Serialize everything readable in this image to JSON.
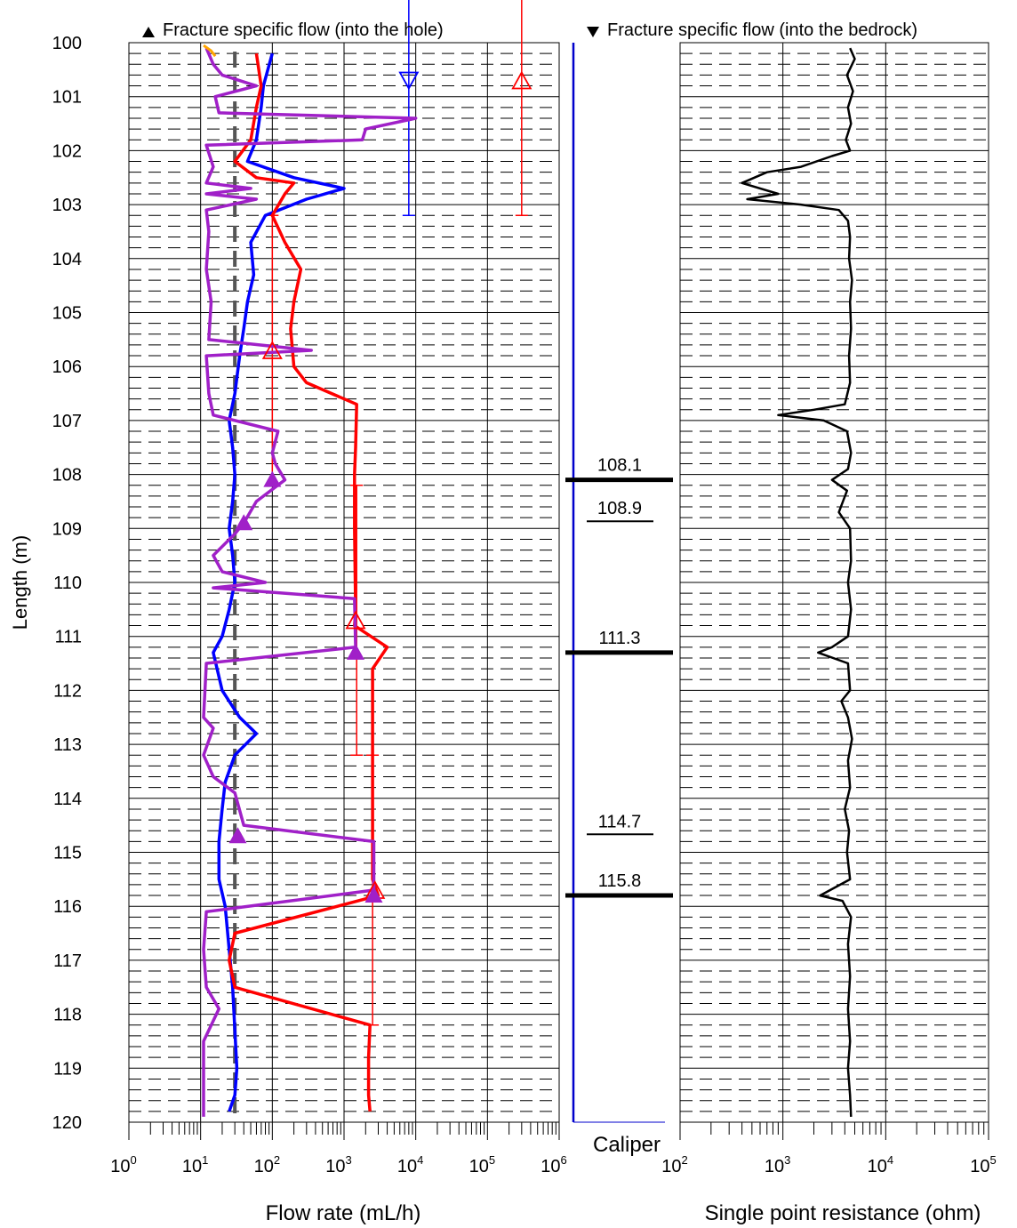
{
  "legend": {
    "into_hole": "Fracture specific flow (into the hole)",
    "into_bedrock": "Fracture specific flow (into the bedrock)"
  },
  "y_axis": {
    "label": "Length (m)",
    "min": 100,
    "max": 120,
    "ticks": [
      100,
      101,
      102,
      103,
      104,
      105,
      106,
      107,
      108,
      109,
      110,
      111,
      112,
      113,
      114,
      115,
      116,
      117,
      118,
      119,
      120
    ]
  },
  "caliper": {
    "label": "Caliper"
  },
  "colors": {
    "blue": "#0000ff",
    "red": "#ff0000",
    "purple": "#a020c8",
    "orange": "#ffa500",
    "grey": "#555555",
    "black": "#000000"
  },
  "chart_data": [
    {
      "type": "line",
      "panel": "flow",
      "xlabel": "Flow rate (mL/h)",
      "xscale": "log",
      "xlim": [
        1,
        1000000
      ],
      "ylim": [
        120,
        100
      ],
      "x_ticks": [
        {
          "base": "10",
          "exp": "0"
        },
        {
          "base": "10",
          "exp": "1"
        },
        {
          "base": "10",
          "exp": "2"
        },
        {
          "base": "10",
          "exp": "3"
        },
        {
          "base": "10",
          "exp": "4"
        },
        {
          "base": "10",
          "exp": "5"
        },
        {
          "base": "10",
          "exp": "6"
        }
      ],
      "series": [
        {
          "color": "#0000ff",
          "points": [
            [
              100,
              100.2
            ],
            [
              75,
              100.8
            ],
            [
              70,
              101.2
            ],
            [
              60,
              101.8
            ],
            [
              45,
              102.2
            ],
            [
              200,
              102.5
            ],
            [
              1000,
              102.7
            ],
            [
              300,
              102.9
            ],
            [
              80,
              103.2
            ],
            [
              50,
              103.7
            ],
            [
              55,
              104.3
            ],
            [
              45,
              104.8
            ],
            [
              40,
              105.3
            ],
            [
              35,
              105.8
            ],
            [
              30,
              106.5
            ],
            [
              25,
              107
            ],
            [
              28,
              107.5
            ],
            [
              30,
              108
            ],
            [
              28,
              108.5
            ],
            [
              25,
              109
            ],
            [
              28,
              109.5
            ],
            [
              30,
              110
            ],
            [
              25,
              110.5
            ],
            [
              20,
              111
            ],
            [
              15,
              111.3
            ],
            [
              20,
              112
            ],
            [
              35,
              112.5
            ],
            [
              60,
              112.8
            ],
            [
              30,
              113.2
            ],
            [
              22,
              113.7
            ],
            [
              20,
              114.2
            ],
            [
              18,
              114.8
            ],
            [
              18,
              115.5
            ],
            [
              22,
              116
            ],
            [
              25,
              116.8
            ],
            [
              28,
              117.5
            ],
            [
              30,
              118.3
            ],
            [
              32,
              119
            ],
            [
              30,
              119.5
            ],
            [
              25,
              119.8
            ]
          ]
        },
        {
          "color": "#ff0000",
          "points": [
            [
              60,
              100.2
            ],
            [
              70,
              100.8
            ],
            [
              60,
              101.2
            ],
            [
              50,
              101.8
            ],
            [
              30,
              102.2
            ],
            [
              60,
              102.5
            ],
            [
              200,
              102.6
            ],
            [
              150,
              102.8
            ],
            [
              100,
              103.2
            ],
            [
              150,
              103.7
            ],
            [
              250,
              104.2
            ],
            [
              200,
              104.8
            ],
            [
              180,
              105.3
            ],
            [
              200,
              106
            ],
            [
              300,
              106.3
            ],
            [
              1500,
              106.7
            ],
            [
              1450,
              107.5
            ],
            [
              1400,
              108
            ],
            [
              1400,
              109
            ],
            [
              1450,
              110.5
            ],
            [
              1400,
              110.8
            ],
            [
              4000,
              111.2
            ],
            [
              2500,
              111.6
            ],
            [
              2500,
              112.5
            ],
            [
              2500,
              113.5
            ],
            [
              2500,
              114.5
            ],
            [
              2500,
              115.5
            ],
            [
              3000,
              115.8
            ],
            [
              30,
              116.5
            ],
            [
              25,
              117
            ],
            [
              30,
              117.5
            ],
            [
              2300,
              118.2
            ],
            [
              2200,
              118.8
            ],
            [
              2200,
              119.5
            ],
            [
              2300,
              119.8
            ]
          ]
        },
        {
          "color": "#a020c8",
          "points": [
            [
              12,
              100.1
            ],
            [
              15,
              100.4
            ],
            [
              20,
              100.6
            ],
            [
              60,
              100.8
            ],
            [
              16,
              101
            ],
            [
              18,
              101.3
            ],
            [
              10000,
              101.4
            ],
            [
              2000,
              101.6
            ],
            [
              1800,
              101.8
            ],
            [
              12,
              101.9
            ],
            [
              15,
              102.3
            ],
            [
              12,
              102.6
            ],
            [
              50,
              102.7
            ],
            [
              12,
              102.8
            ],
            [
              60,
              102.9
            ],
            [
              12,
              103.1
            ],
            [
              13,
              103.5
            ],
            [
              12,
              104.2
            ],
            [
              14,
              104.8
            ],
            [
              13,
              105.5
            ],
            [
              350,
              105.7
            ],
            [
              12,
              105.8
            ],
            [
              13,
              106.5
            ],
            [
              15,
              106.9
            ],
            [
              120,
              107.2
            ],
            [
              100,
              107.6
            ],
            [
              110,
              107.8
            ],
            [
              150,
              108.1
            ],
            [
              60,
              108.5
            ],
            [
              40,
              108.9
            ],
            [
              30,
              109.1
            ],
            [
              15,
              109.5
            ],
            [
              20,
              109.8
            ],
            [
              80,
              110
            ],
            [
              15,
              110.1
            ],
            [
              1400,
              110.3
            ],
            [
              1450,
              111.2
            ],
            [
              12,
              111.5
            ],
            [
              11,
              112.5
            ],
            [
              15,
              112.7
            ],
            [
              11,
              113.2
            ],
            [
              15,
              113.6
            ],
            [
              30,
              113.9
            ],
            [
              40,
              114.5
            ],
            [
              2600,
              114.8
            ],
            [
              2600,
              115.7
            ],
            [
              12,
              116.1
            ],
            [
              11,
              116.8
            ],
            [
              12,
              117.5
            ],
            [
              18,
              117.9
            ],
            [
              11,
              118.5
            ],
            [
              11,
              119.5
            ],
            [
              11,
              119.9
            ]
          ]
        }
      ],
      "reference_line": {
        "color": "#555555",
        "style": "dashed",
        "x": 30
      },
      "into_hole_markers": [
        [
          100,
          108.1
        ],
        [
          40,
          108.9
        ],
        [
          1450,
          111.3
        ],
        [
          33,
          114.7
        ],
        [
          2600,
          115.8
        ]
      ],
      "hollow_markers": [
        {
          "color": "#0000ff",
          "direction": "down",
          "point": [
            8000,
            100.7
          ]
        },
        {
          "color": "#ff0000",
          "direction": "up",
          "point": [
            300000,
            100.7
          ]
        },
        {
          "color": "#ff0000",
          "direction": "up",
          "point": [
            100,
            105.7
          ]
        },
        {
          "color": "#ff0000",
          "direction": "up",
          "point": [
            1450,
            110.7
          ]
        },
        {
          "color": "#ff0000",
          "direction": "up",
          "point": [
            2700,
            115.7
          ]
        }
      ],
      "intervals": [
        {
          "color": "#0000ff",
          "x": 8000,
          "from": 99,
          "to": 103.2
        },
        {
          "color": "#ff0000",
          "x": 300000,
          "from": 99,
          "to": 103.2
        },
        {
          "color": "#ff0000",
          "x": 100,
          "from": 103.2,
          "to": 108.2
        },
        {
          "color": "#ff0000",
          "x": 1500,
          "from": 108.2,
          "to": 113.2
        },
        {
          "color": "#ff0000",
          "x": 2500,
          "from": 113.2,
          "to": 118.2
        }
      ]
    },
    {
      "type": "table",
      "panel": "fracture_depths",
      "fractures": [
        {
          "depth": 108.1,
          "label": "108.1",
          "heavy": true
        },
        {
          "depth": 108.9,
          "label": "108.9",
          "heavy": false
        },
        {
          "depth": 111.3,
          "label": "111.3",
          "heavy": true
        },
        {
          "depth": 114.7,
          "label": "114.7",
          "heavy": false
        },
        {
          "depth": 115.8,
          "label": "115.8",
          "heavy": true
        }
      ]
    },
    {
      "type": "line",
      "panel": "resistance",
      "xlabel": "Single point resistance (ohm)",
      "xscale": "log",
      "xlim": [
        100,
        100000
      ],
      "ylim": [
        120,
        100
      ],
      "x_ticks": [
        {
          "base": "10",
          "exp": "2"
        },
        {
          "base": "10",
          "exp": "3"
        },
        {
          "base": "10",
          "exp": "4"
        },
        {
          "base": "10",
          "exp": "5"
        }
      ],
      "series": [
        {
          "color": "#000000",
          "points": [
            [
              4500,
              100.1
            ],
            [
              5000,
              100.3
            ],
            [
              4200,
              100.6
            ],
            [
              4800,
              100.9
            ],
            [
              4300,
              101.2
            ],
            [
              4600,
              101.5
            ],
            [
              4100,
              101.8
            ],
            [
              4500,
              102
            ],
            [
              3000,
              102.1
            ],
            [
              1500,
              102.3
            ],
            [
              700,
              102.4
            ],
            [
              400,
              102.6
            ],
            [
              900,
              102.8
            ],
            [
              450,
              102.9
            ],
            [
              1500,
              103.0
            ],
            [
              3500,
              103.1
            ],
            [
              4300,
              103.3
            ],
            [
              4500,
              103.6
            ],
            [
              4400,
              104
            ],
            [
              4700,
              104.4
            ],
            [
              4500,
              104.8
            ],
            [
              4600,
              105.3
            ],
            [
              4400,
              105.8
            ],
            [
              4500,
              106.3
            ],
            [
              4000,
              106.7
            ],
            [
              2000,
              106.8
            ],
            [
              900,
              106.9
            ],
            [
              2500,
              107.0
            ],
            [
              4200,
              107.2
            ],
            [
              4600,
              107.6
            ],
            [
              4300,
              107.9
            ],
            [
              3000,
              108.1
            ],
            [
              4200,
              108.3
            ],
            [
              3500,
              108.7
            ],
            [
              4500,
              109
            ],
            [
              4600,
              109.6
            ],
            [
              4300,
              110
            ],
            [
              4600,
              110.5
            ],
            [
              4300,
              111
            ],
            [
              3000,
              111.2
            ],
            [
              2200,
              111.3
            ],
            [
              4300,
              111.5
            ],
            [
              4500,
              112
            ],
            [
              3700,
              112.2
            ],
            [
              4300,
              112.5
            ],
            [
              4700,
              112.9
            ],
            [
              4300,
              113.3
            ],
            [
              4500,
              113.8
            ],
            [
              4000,
              114.2
            ],
            [
              4400,
              114.6
            ],
            [
              4200,
              115
            ],
            [
              4500,
              115.5
            ],
            [
              2300,
              115.8
            ],
            [
              3800,
              115.9
            ],
            [
              4600,
              116.2
            ],
            [
              4300,
              116.7
            ],
            [
              4500,
              117.3
            ],
            [
              4300,
              117.9
            ],
            [
              4500,
              118.5
            ],
            [
              4300,
              119
            ],
            [
              4500,
              119.5
            ],
            [
              4600,
              119.9
            ]
          ]
        }
      ]
    }
  ]
}
